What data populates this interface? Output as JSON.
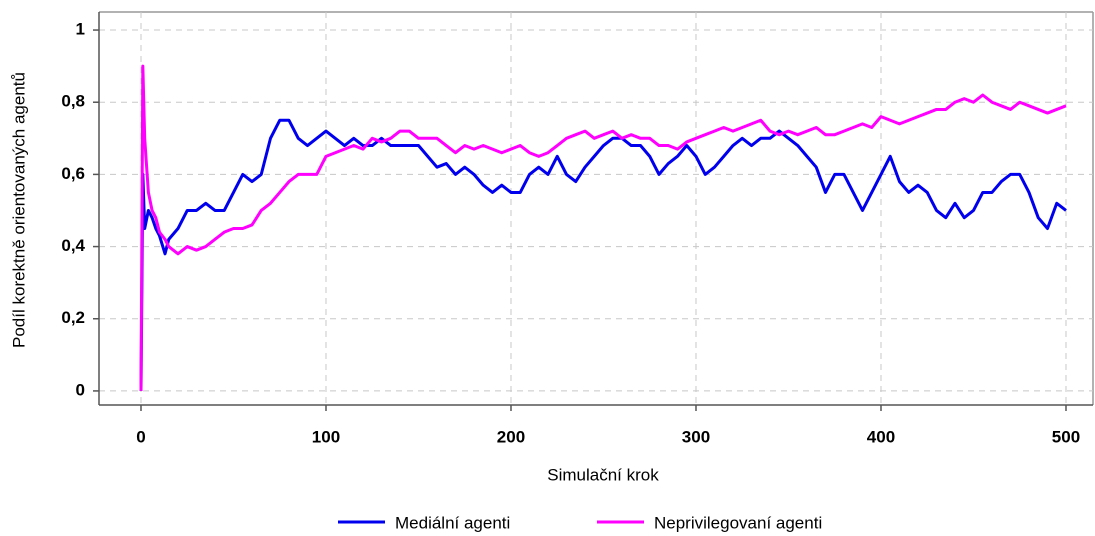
{
  "chart_data": {
    "type": "line",
    "xlabel": "Simulační krok",
    "ylabel": "Podíl korektně orientovaných agentů",
    "x": [
      0,
      1,
      2,
      4,
      6,
      8,
      10,
      13,
      15,
      20,
      25,
      30,
      35,
      40,
      45,
      50,
      55,
      60,
      65,
      70,
      75,
      80,
      85,
      90,
      95,
      100,
      105,
      110,
      115,
      120,
      125,
      130,
      135,
      140,
      145,
      150,
      155,
      160,
      165,
      170,
      175,
      180,
      185,
      190,
      195,
      200,
      205,
      210,
      215,
      220,
      225,
      230,
      235,
      240,
      245,
      250,
      255,
      260,
      265,
      270,
      275,
      280,
      285,
      290,
      295,
      300,
      305,
      310,
      315,
      320,
      325,
      330,
      335,
      340,
      345,
      350,
      355,
      360,
      365,
      370,
      375,
      380,
      385,
      390,
      395,
      400,
      405,
      410,
      415,
      420,
      425,
      430,
      435,
      440,
      445,
      450,
      455,
      460,
      465,
      470,
      475,
      480,
      485,
      490,
      495,
      500
    ],
    "series": [
      {
        "name": "Mediální agenti",
        "color": "#0000ee",
        "values": [
          0,
          0.6,
          0.45,
          0.5,
          0.48,
          0.45,
          0.43,
          0.38,
          0.42,
          0.45,
          0.5,
          0.5,
          0.52,
          0.5,
          0.5,
          0.55,
          0.6,
          0.58,
          0.6,
          0.7,
          0.75,
          0.75,
          0.7,
          0.68,
          0.7,
          0.72,
          0.7,
          0.68,
          0.7,
          0.68,
          0.68,
          0.7,
          0.68,
          0.68,
          0.68,
          0.68,
          0.65,
          0.62,
          0.63,
          0.6,
          0.62,
          0.6,
          0.57,
          0.55,
          0.57,
          0.55,
          0.55,
          0.6,
          0.62,
          0.6,
          0.65,
          0.6,
          0.58,
          0.62,
          0.65,
          0.68,
          0.7,
          0.7,
          0.68,
          0.68,
          0.65,
          0.6,
          0.63,
          0.65,
          0.68,
          0.65,
          0.6,
          0.62,
          0.65,
          0.68,
          0.7,
          0.68,
          0.7,
          0.7,
          0.72,
          0.7,
          0.68,
          0.65,
          0.62,
          0.55,
          0.6,
          0.6,
          0.55,
          0.5,
          0.55,
          0.6,
          0.65,
          0.58,
          0.55,
          0.57,
          0.55,
          0.5,
          0.48,
          0.52,
          0.48,
          0.5,
          0.55,
          0.55,
          0.58,
          0.6,
          0.6,
          0.55,
          0.48,
          0.45,
          0.52,
          0.5
        ]
      },
      {
        "name": "Neprivilegovaní agenti",
        "color": "#ff00ff",
        "values": [
          0,
          0.9,
          0.7,
          0.55,
          0.5,
          0.48,
          0.44,
          0.42,
          0.4,
          0.38,
          0.4,
          0.39,
          0.4,
          0.42,
          0.44,
          0.45,
          0.45,
          0.46,
          0.5,
          0.52,
          0.55,
          0.58,
          0.6,
          0.6,
          0.6,
          0.65,
          0.66,
          0.67,
          0.68,
          0.67,
          0.7,
          0.69,
          0.7,
          0.72,
          0.72,
          0.7,
          0.7,
          0.7,
          0.68,
          0.66,
          0.68,
          0.67,
          0.68,
          0.67,
          0.66,
          0.67,
          0.68,
          0.66,
          0.65,
          0.66,
          0.68,
          0.7,
          0.71,
          0.72,
          0.7,
          0.71,
          0.72,
          0.7,
          0.71,
          0.7,
          0.7,
          0.68,
          0.68,
          0.67,
          0.69,
          0.7,
          0.71,
          0.72,
          0.73,
          0.72,
          0.73,
          0.74,
          0.75,
          0.72,
          0.71,
          0.72,
          0.71,
          0.72,
          0.73,
          0.71,
          0.71,
          0.72,
          0.73,
          0.74,
          0.73,
          0.76,
          0.75,
          0.74,
          0.75,
          0.76,
          0.77,
          0.78,
          0.78,
          0.8,
          0.81,
          0.8,
          0.82,
          0.8,
          0.79,
          0.78,
          0.8,
          0.79,
          0.78,
          0.77,
          0.78,
          0.79
        ]
      }
    ],
    "xlim": [
      -22.7,
      514.6
    ],
    "xticks": [
      0,
      100,
      200,
      300,
      400,
      500
    ],
    "ylim": [
      -0.039,
      1.05
    ],
    "yticks": [
      0,
      {
        "value": 0.2,
        "label": "0,2"
      },
      {
        "value": 0.4,
        "label": "0,4"
      },
      {
        "value": 0.6,
        "label": "0,6"
      },
      {
        "value": 0.8,
        "label": "0,8"
      },
      1
    ],
    "grid": true,
    "legend": "bottom"
  }
}
